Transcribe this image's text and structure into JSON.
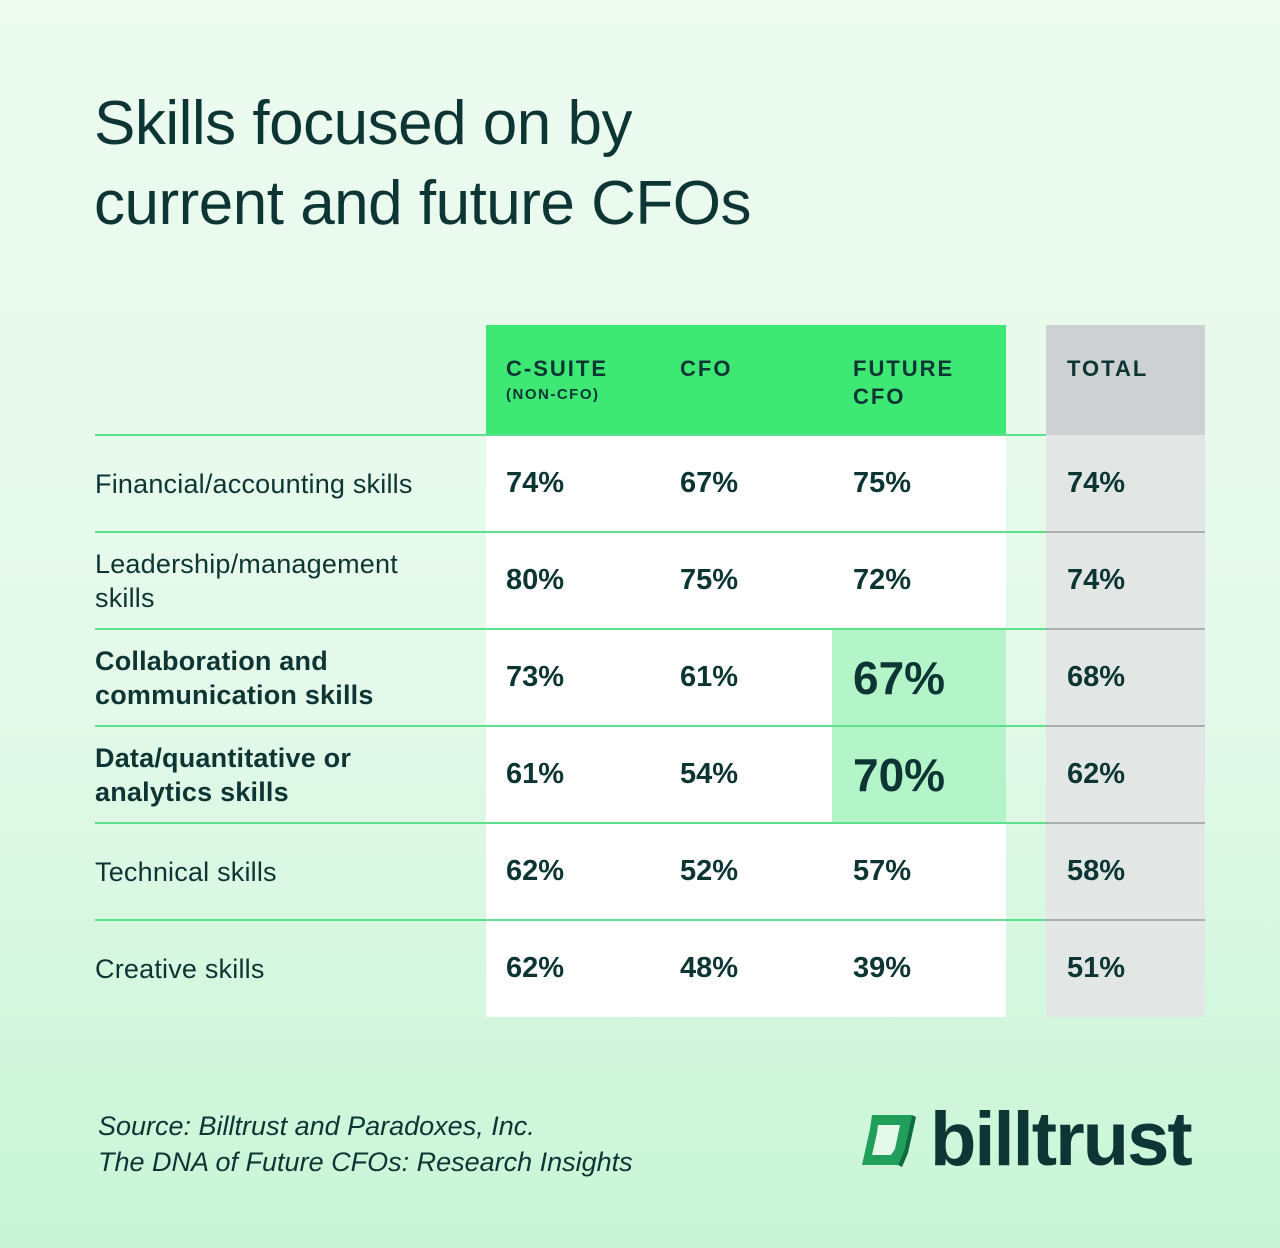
{
  "chart_data": {
    "type": "table",
    "title": [
      "Skills focused on by",
      "current and future CFOs"
    ],
    "columns": [
      {
        "label": [
          "C-SUITE"
        ],
        "sublabel": "(NON-CFO)"
      },
      {
        "label": [
          "CFO"
        ],
        "sublabel": ""
      },
      {
        "label": [
          "FUTURE",
          "CFO"
        ],
        "sublabel": ""
      },
      {
        "label": [
          "TOTAL"
        ],
        "sublabel": ""
      }
    ],
    "rows": [
      {
        "label": [
          "Financial/accounting skills"
        ],
        "bold": false,
        "values": [
          "74%",
          "67%",
          "75%",
          "74%"
        ],
        "highlight": false
      },
      {
        "label": [
          "Leadership/management",
          "skills"
        ],
        "bold": false,
        "values": [
          "80%",
          "75%",
          "72%",
          "74%"
        ],
        "highlight": false
      },
      {
        "label": [
          "Collaboration and",
          "communication skills"
        ],
        "bold": true,
        "values": [
          "73%",
          "61%",
          "67%",
          "68%"
        ],
        "highlight": true
      },
      {
        "label": [
          "Data/quantitative or",
          "analytics skills"
        ],
        "bold": true,
        "values": [
          "61%",
          "54%",
          "70%",
          "62%"
        ],
        "highlight": true
      },
      {
        "label": [
          "Technical skills"
        ],
        "bold": false,
        "values": [
          "62%",
          "52%",
          "57%",
          "58%"
        ],
        "highlight": false
      },
      {
        "label": [
          "Creative skills"
        ],
        "bold": false,
        "values": [
          "62%",
          "48%",
          "39%",
          "51%"
        ],
        "highlight": false
      }
    ],
    "colors": {
      "header_green": "#3de974",
      "highlight": "#b3f5c9",
      "total_gray": "#cdd1d1",
      "text": "#0d3534"
    }
  },
  "source": [
    "Source: Billtrust and Paradoxes, Inc.",
    "The DNA of Future CFOs: Research Insights"
  ],
  "logo": {
    "text": "billtrust",
    "icon": "billtrust-logo-icon"
  }
}
